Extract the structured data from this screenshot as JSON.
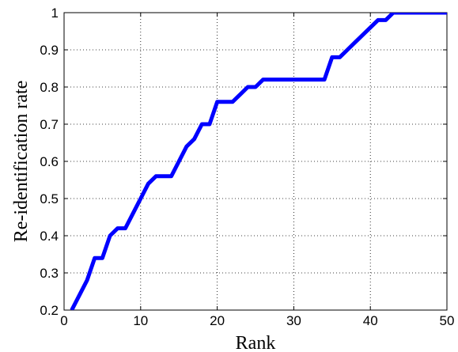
{
  "chart_data": {
    "type": "line",
    "title": "",
    "xlabel": "Rank",
    "ylabel": "Re-identification rate",
    "xlim": [
      0,
      50
    ],
    "ylim": [
      0.2,
      1.0
    ],
    "xticks": [
      "0",
      "10",
      "20",
      "30",
      "40",
      "50"
    ],
    "yticks": [
      "0.2",
      "0.3",
      "0.4",
      "0.5",
      "0.6",
      "0.7",
      "0.8",
      "0.9",
      "1"
    ],
    "grid": true,
    "series": [
      {
        "color": "#0000ff",
        "x": [
          1,
          2,
          3,
          4,
          5,
          6,
          7,
          8,
          9,
          10,
          11,
          12,
          13,
          14,
          15,
          16,
          17,
          18,
          19,
          20,
          21,
          22,
          23,
          24,
          25,
          26,
          27,
          28,
          29,
          30,
          31,
          32,
          33,
          34,
          35,
          36,
          37,
          38,
          39,
          40,
          41,
          42,
          43,
          44,
          45,
          46,
          47,
          48,
          49,
          50
        ],
        "y": [
          0.2,
          0.24,
          0.28,
          0.34,
          0.34,
          0.4,
          0.42,
          0.42,
          0.46,
          0.5,
          0.54,
          0.56,
          0.56,
          0.56,
          0.6,
          0.64,
          0.66,
          0.7,
          0.7,
          0.76,
          0.76,
          0.76,
          0.78,
          0.8,
          0.8,
          0.82,
          0.82,
          0.82,
          0.82,
          0.82,
          0.82,
          0.82,
          0.82,
          0.82,
          0.88,
          0.88,
          0.9,
          0.92,
          0.94,
          0.96,
          0.98,
          0.98,
          1.0,
          1.0,
          1.0,
          1.0,
          1.0,
          1.0,
          1.0,
          1.0
        ]
      }
    ]
  }
}
